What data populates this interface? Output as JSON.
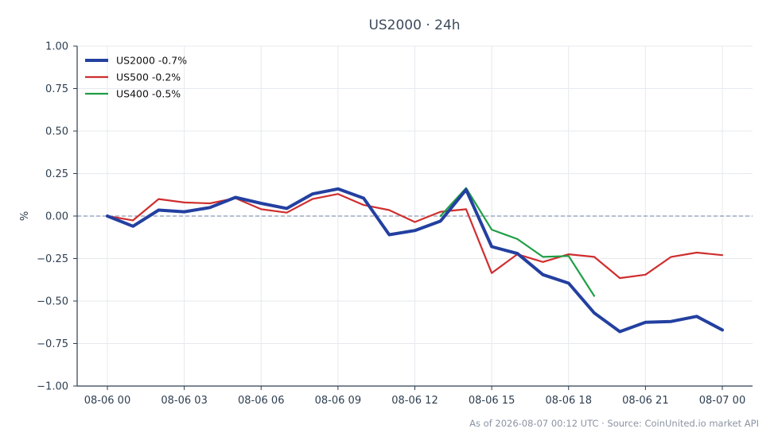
{
  "chart_data": {
    "type": "line",
    "title": "US2000 · 24h",
    "xlabel": "",
    "ylabel": "%",
    "ylim": [
      -1.0,
      1.0
    ],
    "xlim": [
      0,
      24
    ],
    "yticks": [
      1.0,
      0.75,
      0.5,
      0.25,
      0.0,
      -0.25,
      -0.5,
      -0.75,
      -1.0
    ],
    "ytick_labels": [
      "1.00",
      "0.75",
      "0.50",
      "0.25",
      "0.00",
      "−0.25",
      "−0.50",
      "−0.75",
      "−1.00"
    ],
    "xticks": [
      0,
      3,
      6,
      9,
      12,
      15,
      18,
      21,
      24
    ],
    "xtick_labels": [
      "08-06 00",
      "08-06 03",
      "08-06 06",
      "08-06 09",
      "08-06 12",
      "08-06 15",
      "08-06 18",
      "08-06 21",
      "08-07 00"
    ],
    "grid": true,
    "baseline": 0.0,
    "legend_position": "top-left",
    "series": [
      {
        "name": "US2000 -0.7%",
        "color": "#2340a0",
        "width": 4,
        "x": [
          0,
          1,
          2,
          3,
          4,
          5,
          6,
          7,
          8,
          9,
          10,
          11,
          12,
          13,
          14,
          15,
          16,
          17,
          18,
          19,
          20,
          21,
          22,
          23,
          24
        ],
        "values": [
          0.0,
          -0.06,
          0.035,
          0.025,
          0.05,
          0.11,
          0.075,
          0.045,
          0.13,
          0.16,
          0.105,
          -0.11,
          -0.085,
          -0.03,
          0.155,
          -0.18,
          -0.22,
          -0.345,
          -0.395,
          -0.57,
          -0.68,
          -0.625,
          -0.62,
          -0.59,
          -0.67
        ]
      },
      {
        "name": "US500 -0.2%",
        "color": "#cf2e2e",
        "width": 2.2,
        "x": [
          0,
          1,
          2,
          3,
          4,
          5,
          6,
          7,
          8,
          9,
          10,
          11,
          12,
          13,
          14,
          15,
          16,
          17,
          18,
          19,
          20,
          21,
          22,
          23,
          24
        ],
        "values": [
          0.0,
          -0.025,
          0.1,
          0.08,
          0.075,
          0.105,
          0.04,
          0.02,
          0.1,
          0.13,
          0.065,
          0.035,
          -0.035,
          0.025,
          0.04,
          -0.335,
          -0.225,
          -0.27,
          -0.225,
          -0.24,
          -0.365,
          -0.345,
          -0.24,
          -0.215,
          -0.23
        ]
      },
      {
        "name": "US400 -0.5%",
        "color": "#1f9e46",
        "width": 2.2,
        "x": [
          13,
          14,
          15,
          16,
          17,
          18,
          19
        ],
        "values": [
          0.0,
          0.165,
          -0.08,
          -0.135,
          -0.24,
          -0.235,
          -0.47
        ]
      }
    ]
  },
  "footer": "As of 2026-08-07 00:12 UTC · Source: CoinUnited.io market API"
}
